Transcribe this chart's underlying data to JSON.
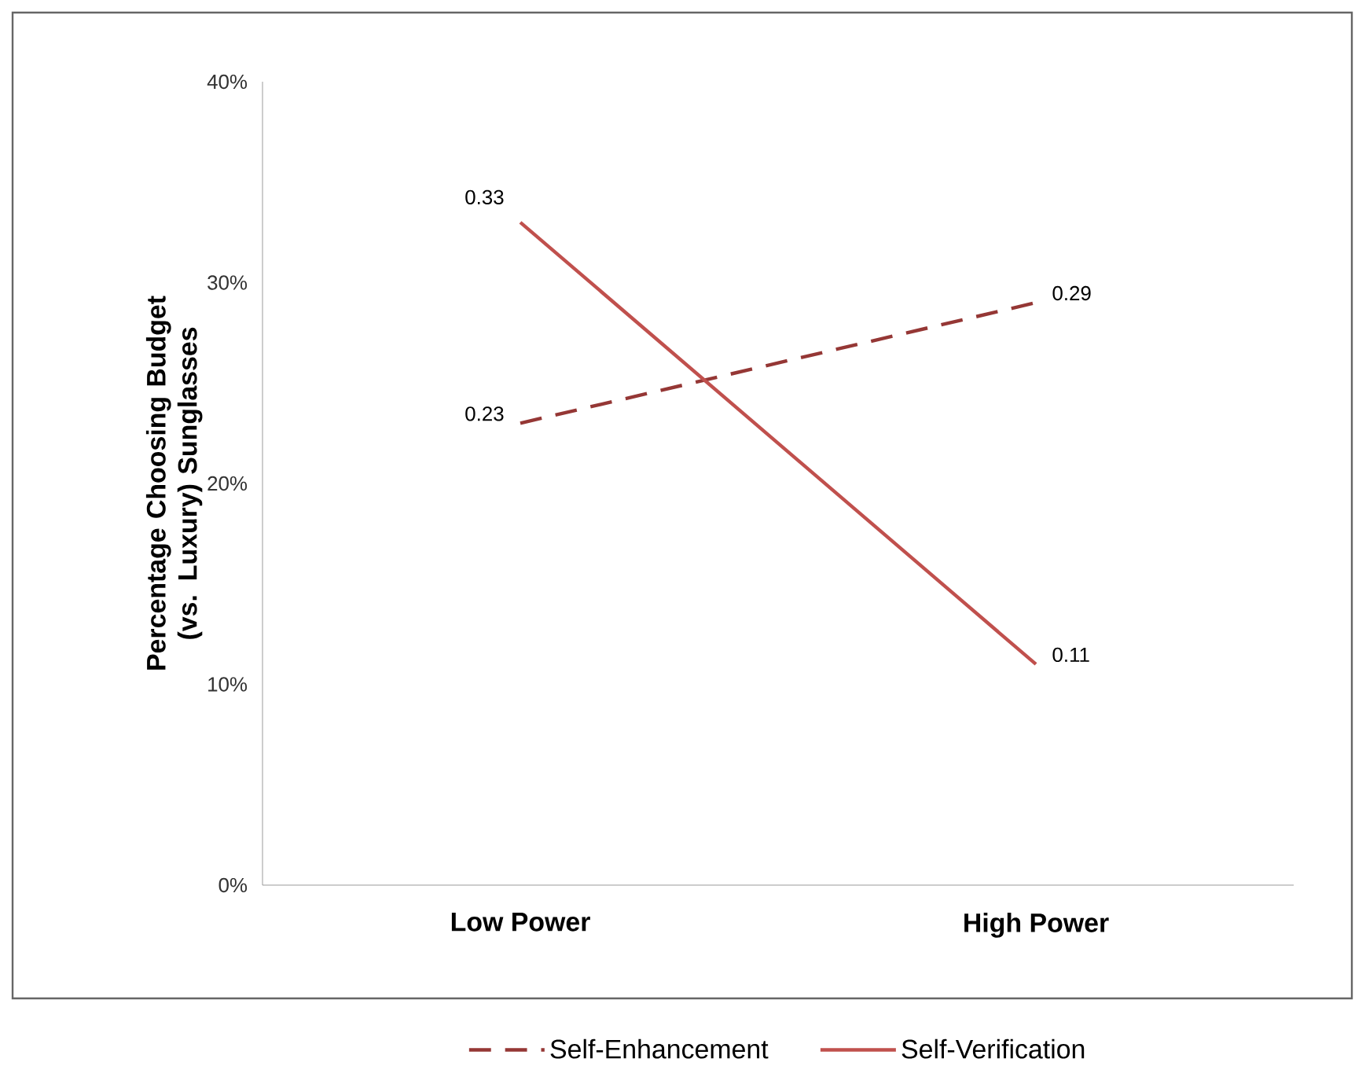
{
  "chart_data": {
    "type": "line",
    "ylabel": "Percentage Choosing Budget (vs. Luxury) Sunglasses",
    "categories": [
      "Low Power",
      "High Power"
    ],
    "series": [
      {
        "name": "Self-Enhancement",
        "color": "#953735",
        "line_style": "dashed",
        "values": [
          0.23,
          0.29
        ]
      },
      {
        "name": "Self-Verification",
        "color": "#c0504d",
        "line_style": "solid",
        "values": [
          0.33,
          0.11
        ]
      }
    ],
    "ylim": [
      0,
      0.4
    ],
    "yticks": [
      {
        "value": 0,
        "label": "0%"
      },
      {
        "value": 0.1,
        "label": "10%"
      },
      {
        "value": 0.2,
        "label": "20%"
      },
      {
        "value": 0.3,
        "label": "30%"
      },
      {
        "value": 0.4,
        "label": "40%"
      }
    ],
    "data_labels": true,
    "grid": false,
    "legend": "bottom",
    "marker": "none"
  }
}
